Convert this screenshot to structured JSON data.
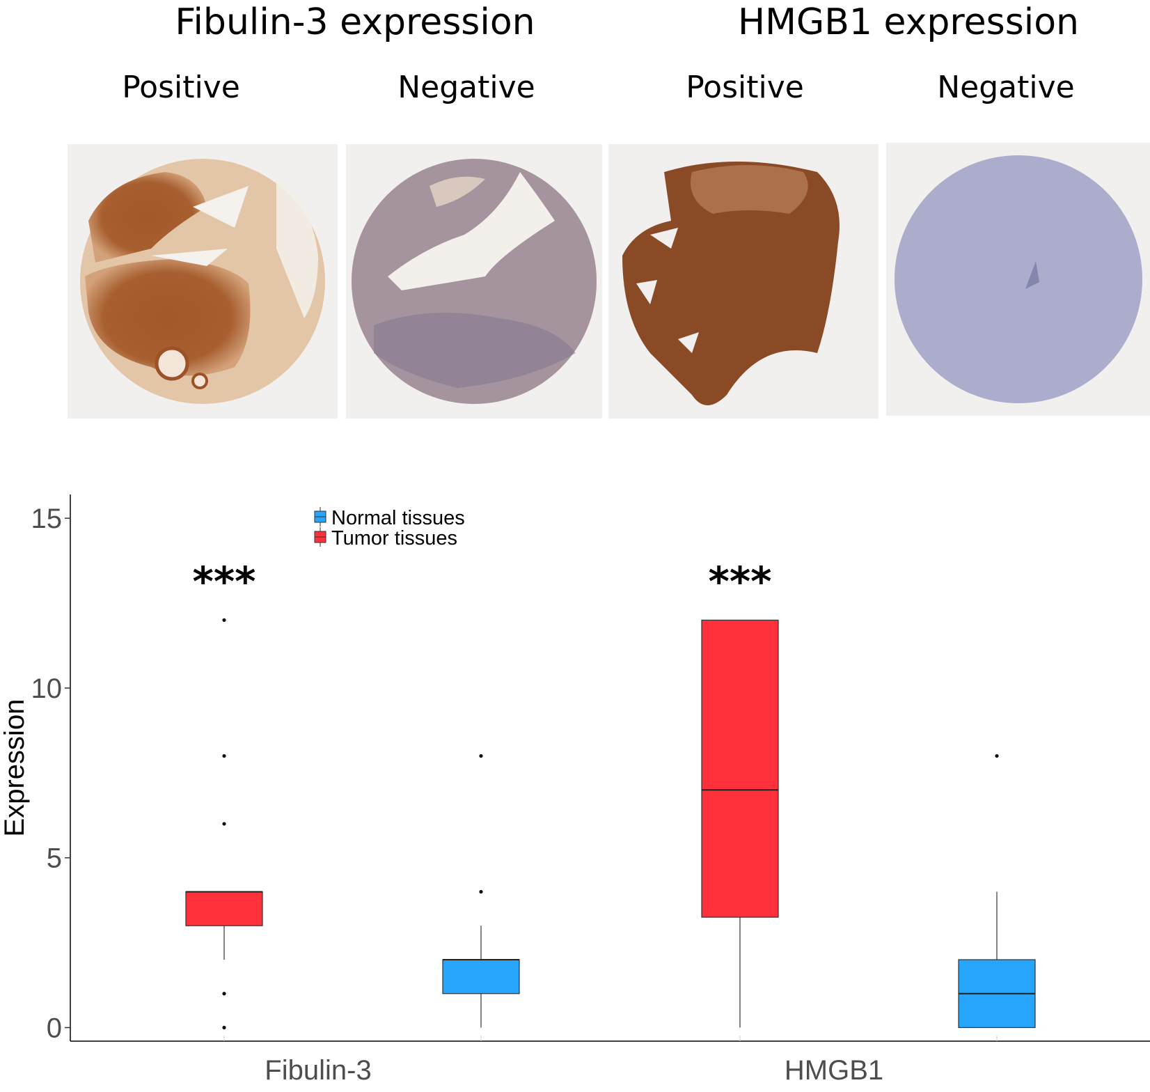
{
  "header": {
    "groups": [
      {
        "title": "Fibulin-3 expression",
        "positive_label": "Positive",
        "negative_label": "Negative"
      },
      {
        "title": "HMGB1 expression",
        "positive_label": "Positive",
        "negative_label": "Negative"
      }
    ]
  },
  "panels": [
    {
      "name": "fibulin3-positive-tissue",
      "stain_color": "#9c5226",
      "bg_color": "#f1f0ee"
    },
    {
      "name": "fibulin3-negative-tissue",
      "stain_color": "#8e7f9a",
      "bg_color": "#f1f0ee"
    },
    {
      "name": "hmgb1-positive-tissue",
      "stain_color": "#8a4a26",
      "bg_color": "#f1f0ee"
    },
    {
      "name": "hmgb1-negative-tissue",
      "stain_color": "#9a9cc6",
      "bg_color": "#f1f0ee"
    }
  ],
  "chart_data": {
    "type": "boxplot",
    "title": "",
    "xlabel": "",
    "ylabel": "Expression",
    "categories": [
      "Fibulin-3",
      "HMGB1"
    ],
    "ylim": [
      -0.4,
      15.7
    ],
    "yticks": [
      0,
      5,
      10,
      15
    ],
    "grid": false,
    "legend_position": "top-left",
    "series": [
      {
        "name": "Normal tissues",
        "color": "#27a4fb"
      },
      {
        "name": "Tumor tissues",
        "color": "#ff303a"
      }
    ],
    "boxes": [
      {
        "category": "Fibulin-3",
        "series": "Tumor tissues",
        "whisker_low": 2,
        "q1": 3,
        "median": 4,
        "q3": 4,
        "whisker_high": 4,
        "outliers": [
          0,
          1,
          6,
          8,
          12
        ]
      },
      {
        "category": "Fibulin-3",
        "series": "Normal tissues",
        "whisker_low": 0,
        "q1": 1,
        "median": 2,
        "q3": 2,
        "whisker_high": 3,
        "outliers": [
          4,
          8
        ]
      },
      {
        "category": "HMGB1",
        "series": "Tumor tissues",
        "whisker_low": 0,
        "q1": 3.25,
        "median": 7,
        "q3": 12,
        "whisker_high": 12,
        "outliers": []
      },
      {
        "category": "HMGB1",
        "series": "Normal tissues",
        "whisker_low": 0,
        "q1": 0,
        "median": 1,
        "q3": 2,
        "whisker_high": 4,
        "outliers": [
          8
        ]
      }
    ],
    "annotations": [
      {
        "text": "***",
        "category": "Fibulin-3"
      },
      {
        "text": "***",
        "category": "HMGB1"
      }
    ]
  }
}
